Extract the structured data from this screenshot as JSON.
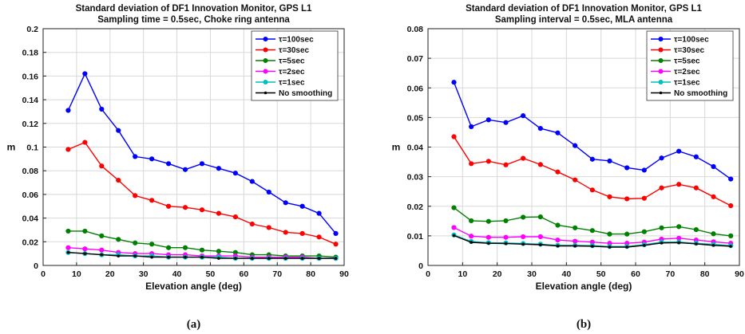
{
  "chart_data": [
    {
      "type": "line",
      "title": "Standard deviation of DF1 Innovation Monitor, GPS L1",
      "subtitle": "Sampling time = 0.5sec, Choke ring antenna",
      "xlabel": "Elevation angle (deg)",
      "ylabel": "m",
      "xlim": [
        0,
        90
      ],
      "ylim": [
        0,
        0.2
      ],
      "xticks": [
        "0",
        "10",
        "20",
        "30",
        "40",
        "50",
        "60",
        "70",
        "80",
        "90"
      ],
      "yticks": [
        "0",
        "0.02",
        "0.04",
        "0.06",
        "0.08",
        "0.1",
        "0.12",
        "0.14",
        "0.16",
        "0.18",
        "0.2"
      ],
      "grid": true,
      "legend_position": "top-right",
      "caption": "(a)",
      "x": [
        7.5,
        12.5,
        17.5,
        22.5,
        27.5,
        32.5,
        37.5,
        42.5,
        47.5,
        52.5,
        57.5,
        62.5,
        67.5,
        72.5,
        77.5,
        82.5,
        87.5
      ],
      "series": [
        {
          "name": "τ=100sec",
          "color": "#0000ff",
          "values": [
            0.131,
            0.162,
            0.132,
            0.114,
            0.092,
            0.09,
            0.086,
            0.081,
            0.086,
            0.082,
            0.078,
            0.071,
            0.062,
            0.053,
            0.05,
            0.044,
            0.027
          ]
        },
        {
          "name": "τ=30sec",
          "color": "#ff0000",
          "values": [
            0.098,
            0.104,
            0.084,
            0.072,
            0.059,
            0.055,
            0.05,
            0.049,
            0.047,
            0.044,
            0.041,
            0.035,
            0.032,
            0.028,
            0.027,
            0.024,
            0.018
          ]
        },
        {
          "name": "τ=5sec",
          "color": "#008000",
          "values": [
            0.029,
            0.029,
            0.025,
            0.022,
            0.019,
            0.018,
            0.015,
            0.015,
            0.013,
            0.012,
            0.011,
            0.009,
            0.009,
            0.008,
            0.008,
            0.008,
            0.007
          ]
        },
        {
          "name": "τ=2sec",
          "color": "#ff00ff",
          "values": [
            0.015,
            0.014,
            0.013,
            0.011,
            0.01,
            0.01,
            0.009,
            0.009,
            0.008,
            0.008,
            0.008,
            0.007,
            0.007,
            0.007,
            0.007,
            0.006,
            0.006
          ]
        },
        {
          "name": "τ=1sec",
          "color": "#00bfbf",
          "values": [
            0.011,
            0.01,
            0.009,
            0.009,
            0.008,
            0.008,
            0.007,
            0.007,
            0.007,
            0.007,
            0.006,
            0.006,
            0.006,
            0.006,
            0.006,
            0.006,
            0.006
          ]
        },
        {
          "name": "No smoothing",
          "color": "#000000",
          "values": [
            0.011,
            0.01,
            0.009,
            0.008,
            0.008,
            0.007,
            0.007,
            0.007,
            0.007,
            0.006,
            0.006,
            0.006,
            0.006,
            0.006,
            0.006,
            0.006,
            0.006
          ]
        }
      ]
    },
    {
      "type": "line",
      "title": "Standard deviation of DF1 Innovation Monitor, GPS L1",
      "subtitle": "Sampling interval = 0.5sec, MLA antenna",
      "xlabel": "Elevation angle (deg)",
      "ylabel": "m",
      "xlim": [
        0,
        90
      ],
      "ylim": [
        0,
        0.08
      ],
      "xticks": [
        "0",
        "10",
        "20",
        "30",
        "40",
        "50",
        "60",
        "70",
        "80",
        "90"
      ],
      "yticks": [
        "0",
        "0.01",
        "0.02",
        "0.03",
        "0.04",
        "0.05",
        "0.06",
        "0.07",
        "0.08"
      ],
      "grid": true,
      "legend_position": "top-right",
      "caption": "(b)",
      "x": [
        7.5,
        12.5,
        17.5,
        22.5,
        27.5,
        32.5,
        37.5,
        42.5,
        47.5,
        52.5,
        57.5,
        62.5,
        67.5,
        72.5,
        77.5,
        82.5,
        87.5
      ],
      "series": [
        {
          "name": "τ=100sec",
          "color": "#0000ff",
          "values": [
            0.0619,
            0.0469,
            0.0492,
            0.0483,
            0.0506,
            0.0463,
            0.0448,
            0.0405,
            0.0359,
            0.0353,
            0.033,
            0.0322,
            0.0363,
            0.0386,
            0.0367,
            0.0334,
            0.0292
          ]
        },
        {
          "name": "τ=30sec",
          "color": "#ff0000",
          "values": [
            0.0435,
            0.0344,
            0.0352,
            0.034,
            0.0362,
            0.0341,
            0.0316,
            0.0289,
            0.0255,
            0.0232,
            0.0225,
            0.0227,
            0.0262,
            0.0274,
            0.0262,
            0.0232,
            0.0202
          ]
        },
        {
          "name": "τ=5sec",
          "color": "#008000",
          "values": [
            0.0195,
            0.0151,
            0.0149,
            0.0151,
            0.0163,
            0.0164,
            0.0136,
            0.0127,
            0.0118,
            0.0106,
            0.0106,
            0.0114,
            0.0127,
            0.0131,
            0.0121,
            0.0107,
            0.01
          ]
        },
        {
          "name": "τ=2sec",
          "color": "#ff00ff",
          "values": [
            0.0128,
            0.0099,
            0.0095,
            0.0095,
            0.0097,
            0.0097,
            0.0086,
            0.0082,
            0.0079,
            0.0075,
            0.0075,
            0.0079,
            0.0089,
            0.0092,
            0.0086,
            0.008,
            0.0075
          ]
        },
        {
          "name": "τ=1sec",
          "color": "#00bfbf",
          "values": [
            0.0103,
            0.0081,
            0.0077,
            0.0076,
            0.0074,
            0.0072,
            0.0068,
            0.0068,
            0.0067,
            0.0064,
            0.0064,
            0.007,
            0.0079,
            0.0079,
            0.0075,
            0.0071,
            0.0067
          ]
        },
        {
          "name": "No smoothing",
          "color": "#000000",
          "values": [
            0.0101,
            0.0078,
            0.0075,
            0.0074,
            0.0072,
            0.007,
            0.0066,
            0.0066,
            0.0065,
            0.0062,
            0.0062,
            0.0068,
            0.0076,
            0.0077,
            0.0073,
            0.0068,
            0.0065
          ]
        }
      ]
    }
  ]
}
